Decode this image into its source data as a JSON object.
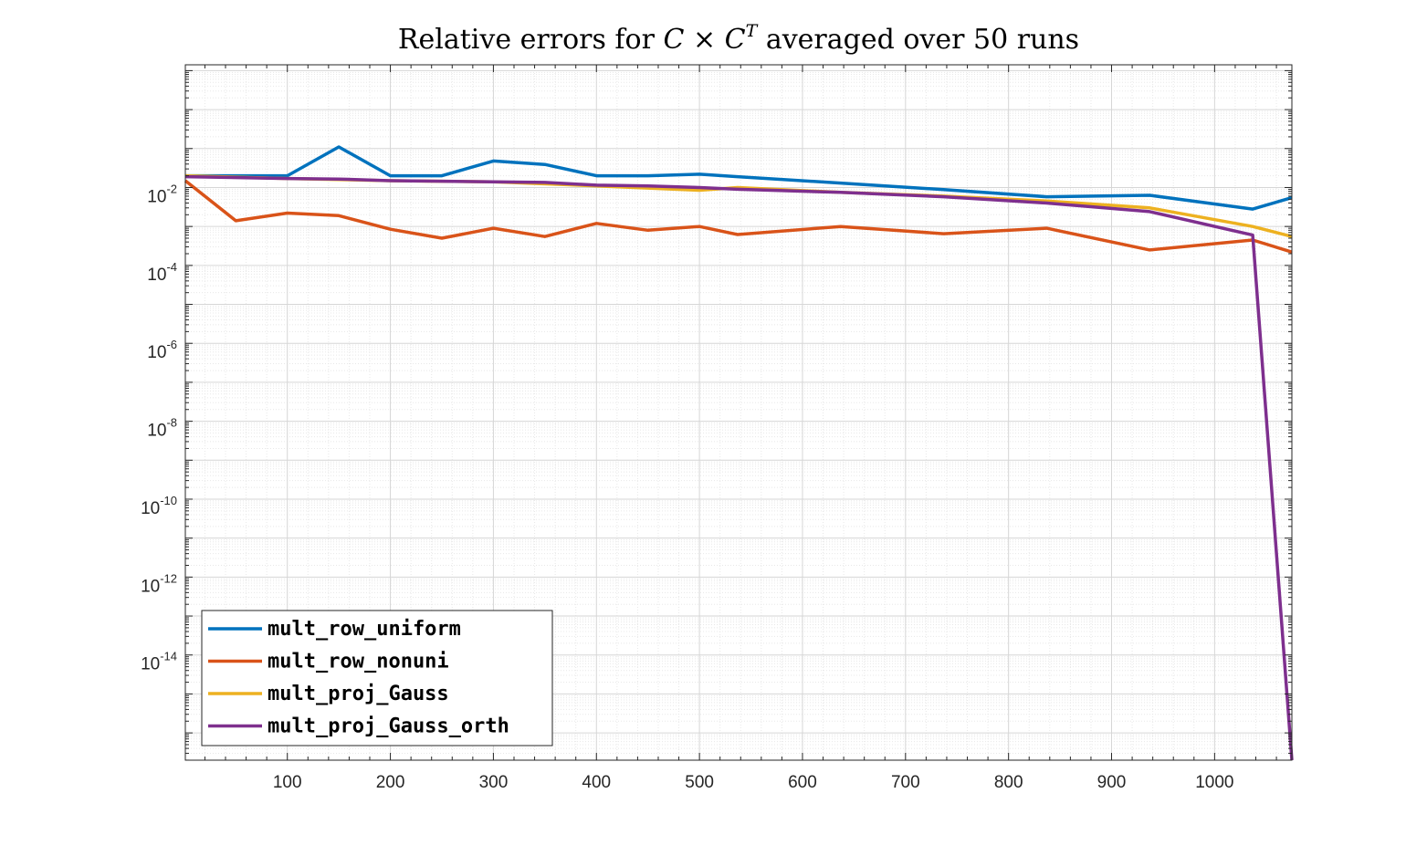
{
  "chart_data": {
    "type": "line",
    "title": {
      "prefix": "Relative errors for ",
      "math_c1": "C",
      "math_times": " × ",
      "math_c2": "C",
      "math_sup": "T",
      "suffix": " averaged over 50 runs"
    },
    "xlabel": "",
    "ylabel": "",
    "xlim": [
      1,
      1075
    ],
    "y_scale": "log",
    "ylim_log10": [
      -16.7,
      1.15
    ],
    "x_ticks": [
      100,
      200,
      300,
      400,
      500,
      600,
      700,
      800,
      900,
      1000
    ],
    "x_tick_labels": [
      "100",
      "200",
      "300",
      "400",
      "500",
      "600",
      "700",
      "800",
      "900",
      "1000"
    ],
    "y_tick_exponents": [
      -14,
      -12,
      -10,
      -8,
      -6,
      -4,
      -2
    ],
    "y_tick_labels": [
      {
        "base": "10",
        "exp": "-14"
      },
      {
        "base": "10",
        "exp": "-12"
      },
      {
        "base": "10",
        "exp": "-10"
      },
      {
        "base": "10",
        "exp": "-8"
      },
      {
        "base": "10",
        "exp": "-6"
      },
      {
        "base": "10",
        "exp": "-4"
      },
      {
        "base": "10",
        "exp": "-2"
      }
    ],
    "grid": true,
    "minor_grid": true,
    "legend_position": "bottom-left",
    "series": [
      {
        "name": "mult_row_uniform",
        "color": "#0072BD",
        "x": [
          1,
          50,
          100,
          150,
          200,
          250,
          300,
          350,
          400,
          450,
          500,
          537,
          637,
          737,
          837,
          937,
          1037,
          1075
        ],
        "y": [
          0.02,
          0.02,
          0.02,
          0.11,
          0.02,
          0.02,
          0.048,
          0.039,
          0.02,
          0.02,
          0.022,
          0.019,
          0.013,
          0.0088,
          0.0058,
          0.0063,
          0.0028,
          0.0055
        ]
      },
      {
        "name": "mult_row_nonuni",
        "color": "#D95319",
        "x": [
          1,
          50,
          100,
          150,
          200,
          250,
          300,
          350,
          400,
          450,
          500,
          537,
          637,
          737,
          837,
          937,
          1037,
          1075
        ],
        "y": [
          0.015,
          0.0014,
          0.0022,
          0.0019,
          0.00085,
          0.0005,
          0.0009,
          0.00055,
          0.0012,
          0.0008,
          0.001,
          0.00062,
          0.001,
          0.00065,
          0.0009,
          0.00025,
          0.00045,
          0.00022
        ]
      },
      {
        "name": "mult_proj_Gauss",
        "color": "#EDB120",
        "x": [
          1,
          100,
          200,
          300,
          400,
          500,
          537,
          637,
          737,
          837,
          937,
          1037,
          1075
        ],
        "y": [
          0.02,
          0.017,
          0.015,
          0.014,
          0.011,
          0.0085,
          0.01,
          0.0075,
          0.006,
          0.0045,
          0.003,
          0.001,
          0.00055
        ]
      },
      {
        "name": "mult_proj_Gauss_orth",
        "color": "#7E2F8E",
        "x": [
          1,
          100,
          150,
          200,
          300,
          350,
          400,
          450,
          500,
          537,
          637,
          737,
          837,
          937,
          1037,
          1075
        ],
        "y": [
          0.019,
          0.017,
          0.0165,
          0.015,
          0.014,
          0.0135,
          0.0115,
          0.011,
          0.01,
          0.009,
          0.0075,
          0.0058,
          0.004,
          0.0024,
          0.0006,
          2e-17
        ]
      }
    ]
  }
}
